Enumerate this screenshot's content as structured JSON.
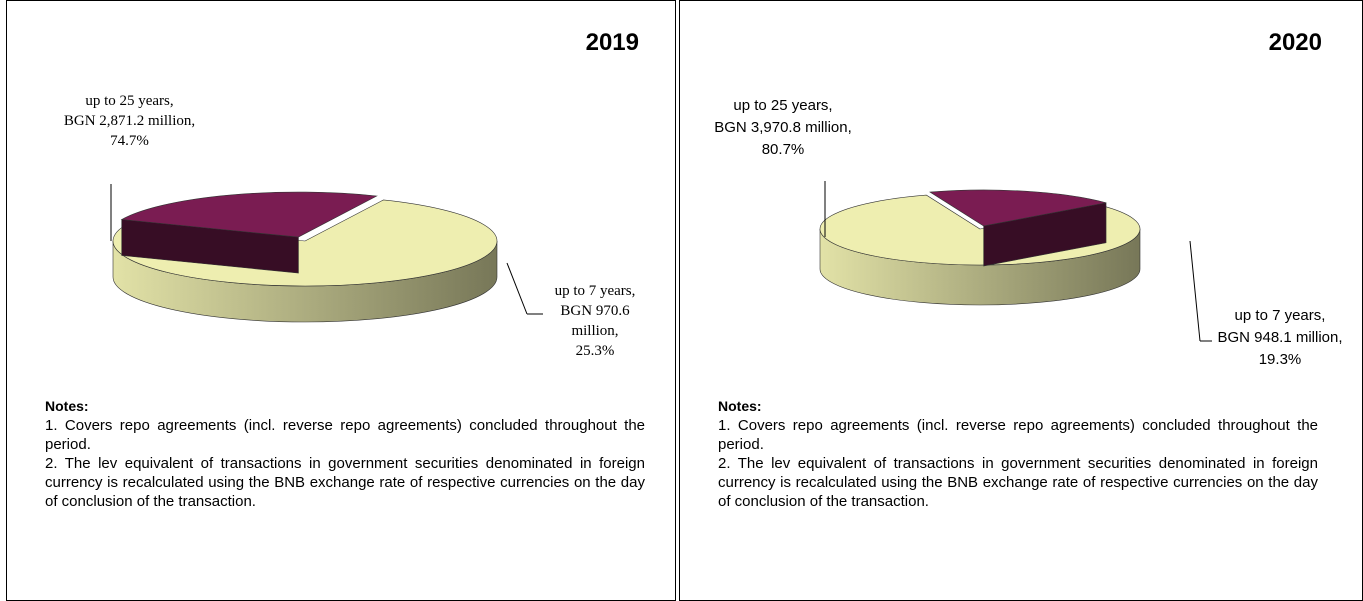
{
  "chart_data": [
    {
      "type": "pie",
      "title": "2019",
      "categories": [
        "up to 25 years,",
        "up to 7 years,"
      ],
      "values": [
        74.7,
        25.3
      ],
      "value_labels": [
        "74.7%",
        "25.3%"
      ],
      "amounts": [
        2871.2,
        970.6
      ],
      "amount_labels": [
        "BGN 2,871.2 million,",
        "BGN 970.6 million,"
      ],
      "colors": [
        "#eeeeb0",
        "#7a1c52"
      ]
    },
    {
      "type": "pie",
      "title": "2020",
      "categories": [
        "up to 25 years,",
        "up to 7 years,"
      ],
      "values": [
        80.7,
        19.3
      ],
      "value_labels": [
        "80.7%",
        "19.3%"
      ],
      "amounts": [
        3970.8,
        948.1
      ],
      "amount_labels": [
        "BGN 3,970.8 million,",
        "BGN 948.1 million,"
      ],
      "colors": [
        "#eeeeb0",
        "#7a1c52"
      ]
    }
  ],
  "notes": [
    {
      "heading": "Notes:",
      "items": [
        "1. Covers repo agreements (incl. reverse repo agreements) concluded throughout the period.",
        "2. The lev equivalent of transactions in government securities denominated in foreign currency is recalculated using the BNB exchange rate of respective currencies on the day of conclusion of the transaction."
      ]
    },
    {
      "heading": "Notes:",
      "items": [
        "1. Covers repo agreements (incl. reverse repo agreements) concluded throughout the period.",
        "2. The lev equivalent of transactions in government securities denominated in foreign currency is recalculated using the BNB exchange rate of respective currencies on the day of conclusion of the transaction."
      ]
    }
  ]
}
